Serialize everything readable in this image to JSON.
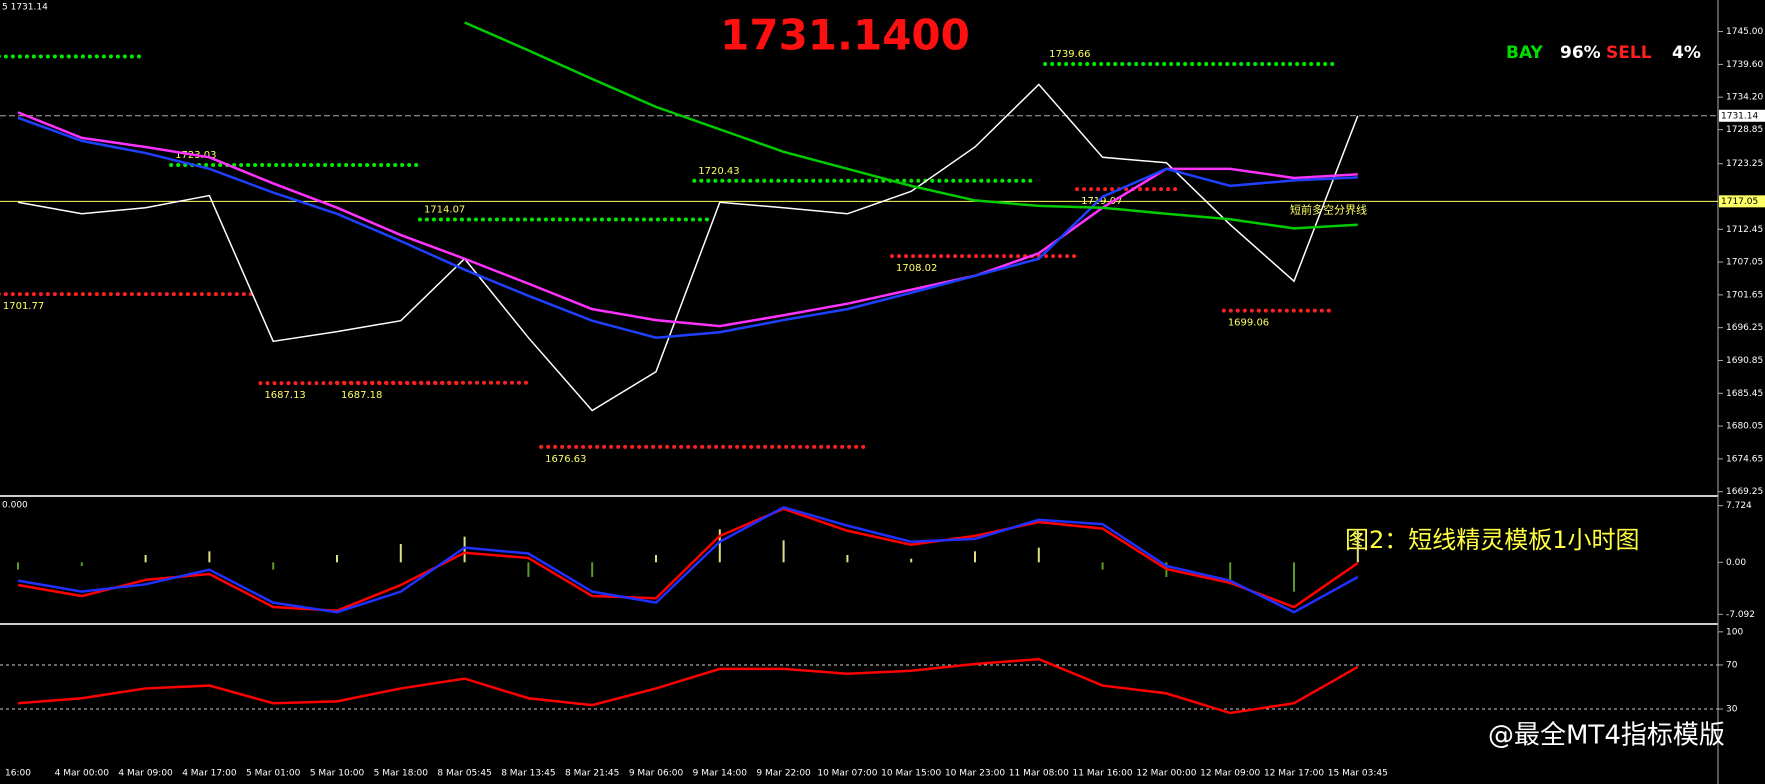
{
  "caption": "图2：短线精灵模板1小时图",
  "watermark": "@最全MT4指标模版",
  "chart_data": [
    {
      "type": "line",
      "title": "1731.1400",
      "header": "5 1731.14",
      "signals": [
        {
          "label": "BAY",
          "color": "#00e000",
          "value": 96,
          "value_label": "96%"
        },
        {
          "label": "SELL",
          "color": "#ff2020",
          "value": 4,
          "value_label": "4%"
        }
      ],
      "ylim": [
        1668.7,
        1750.2
      ],
      "yticks": [
        {
          "value": 1745,
          "label": "1745.00"
        },
        {
          "value": 1739.6,
          "label": "1739.60"
        },
        {
          "value": 1734.2,
          "label": "1734.20"
        },
        {
          "value": 1728.85,
          "label": "1728.85"
        },
        {
          "value": 1723.25,
          "label": "1723.25"
        },
        {
          "value": 1712.45,
          "label": "1712.45"
        },
        {
          "value": 1707.05,
          "label": "1707.05"
        },
        {
          "value": 1701.65,
          "label": "1701.65"
        },
        {
          "value": 1696.25,
          "label": "1696.25"
        },
        {
          "value": 1690.85,
          "label": "1690.85"
        },
        {
          "value": 1685.45,
          "label": "1685.45"
        },
        {
          "value": 1680.05,
          "label": "1680.05"
        },
        {
          "value": 1674.65,
          "label": "1674.65"
        },
        {
          "value": 1669.25,
          "label": "1669.25"
        }
      ],
      "price_lines": [
        {
          "value": 1731.14,
          "label": "1731.14",
          "color": "#aaaaaa"
        },
        {
          "value": 1717.05,
          "label": "1717.05",
          "color": "#ffff66",
          "note": "短前多空分界线"
        }
      ],
      "series": [
        {
          "color": "#ffffff",
          "values": [
            1716.9,
            1715,
            1716,
            1718,
            1694,
            1695.6,
            1697.4,
            1707.6,
            1694.6,
            1682.6,
            1689,
            1716.9,
            1716,
            1715,
            1718.7,
            1726,
            1736.3,
            1724.3,
            1723.4,
            1713.2,
            1703.9,
            1731.14
          ]
        },
        {
          "color": "#ff33ff",
          "values": [
            1731.7,
            1727.5,
            1726,
            1724.3,
            1720,
            1716,
            1711.5,
            1707.6,
            1703.5,
            1699.3,
            1697.5,
            1696.5,
            1698.3,
            1700.2,
            1702.5,
            1704.8,
            1708.5,
            1716,
            1722.4,
            1722.4,
            1720.9,
            1721.5
          ]
        },
        {
          "color": "#2040ff",
          "values": [
            1730.8,
            1727,
            1725,
            1722.4,
            1718.5,
            1715,
            1710.5,
            1705.8,
            1701.5,
            1697.4,
            1694.6,
            1695.5,
            1697.5,
            1699.3,
            1702,
            1704.8,
            1707.6,
            1717.8,
            1722.4,
            1719.6,
            1720.5,
            1721
          ]
        },
        {
          "color": "#00cc00",
          "values": [
            null,
            null,
            null,
            null,
            null,
            null,
            null,
            1746.5,
            1741.9,
            1737.2,
            1732.6,
            1728.9,
            1725.2,
            1722.4,
            1719.6,
            1717.2,
            1716.3,
            1716,
            1715,
            1714.1,
            1712.6,
            1713.2
          ]
        }
      ],
      "levels": [
        {
          "value": 1740.9,
          "color": "#00ee00",
          "from": -0.3,
          "to": 2.0
        },
        {
          "value": 1739.66,
          "label": "1739.66",
          "color": "#00ee00",
          "from": 16.1,
          "to": 20.6
        },
        {
          "value": 1723.03,
          "label": "1723.03",
          "color": "#00ee00",
          "from": 2.4,
          "to": 6.3
        },
        {
          "value": 1720.43,
          "label": "1720.43",
          "color": "#00ee00",
          "from": 10.6,
          "to": 15.9
        },
        {
          "value": 1714.07,
          "label": "1714.07",
          "color": "#00ee00",
          "from": 6.3,
          "to": 10.8
        },
        {
          "value": 1701.77,
          "label": "1701.77",
          "color": "#ff2020",
          "from": -0.3,
          "to": 3.7
        },
        {
          "value": 1687.13,
          "label": "1687.13",
          "color": "#ff2020",
          "from": 3.8,
          "to": 6.9
        },
        {
          "value": 1687.18,
          "label": "1687.18",
          "color": "#ff2020",
          "from": 5.0,
          "to": 8.0
        },
        {
          "value": 1676.63,
          "label": "1676.63",
          "color": "#ff2020",
          "from": 8.2,
          "to": 13.3
        },
        {
          "value": 1708.02,
          "label": "1708.02",
          "color": "#ff2020",
          "from": 13.7,
          "to": 16.6
        },
        {
          "value": 1719.07,
          "label": "1719.07",
          "color": "#ff2020",
          "from": 16.6,
          "to": 18.2
        },
        {
          "value": 1699.06,
          "label": "1699.06",
          "color": "#ff2020",
          "from": 18.9,
          "to": 20.6
        }
      ]
    },
    {
      "type": "line",
      "header": "0.000",
      "ylim": [
        -8.14,
        8.77
      ],
      "yticks": [
        {
          "value": 7.724,
          "label": "7.724"
        },
        {
          "value": 0,
          "label": "0.00"
        },
        {
          "value": -7.092,
          "label": "-7.092"
        }
      ],
      "histogram": {
        "color": "#e0e080",
        "negative_color": "#5a9a2a",
        "values": [
          -1,
          -0.5,
          1,
          1.5,
          -1,
          1,
          2.5,
          3.5,
          -2,
          -2,
          1,
          4.5,
          3,
          1,
          0.5,
          1.5,
          2,
          -1,
          -2,
          -3,
          -4,
          4.5
        ]
      },
      "series": [
        {
          "color": "#ff0000",
          "values": [
            -3.1,
            -4.6,
            -2.4,
            -1.6,
            -6.1,
            -6.6,
            -3.1,
            1.3,
            0.6,
            -4.6,
            -4.9,
            3.6,
            7.3,
            4.3,
            2.4,
            3.6,
            5.5,
            4.6,
            -0.9,
            -2.8,
            -6.1,
            -0.1
          ]
        },
        {
          "color": "#2030ff",
          "values": [
            -2.5,
            -4,
            -3,
            -1,
            -5.5,
            -6.8,
            -4,
            2,
            1.2,
            -4,
            -5.5,
            2.8,
            7.5,
            5,
            2.8,
            3.2,
            5.8,
            5.2,
            -0.5,
            -2.5,
            -6.8,
            -2
          ]
        }
      ]
    },
    {
      "type": "line",
      "ylim": [
        -18,
        104.4
      ],
      "yticks": [
        100,
        70,
        30
      ],
      "levels": [
        70,
        30
      ],
      "categories": [
        "16:00",
        "4 Mar 00:00",
        "4 Mar 09:00",
        "4 Mar 17:00",
        "5 Mar 01:00",
        "5 Mar 10:00",
        "5 Mar 18:00",
        "8 Mar 05:45",
        "8 Mar 13:45",
        "8 Mar 21:45",
        "9 Mar 06:00",
        "9 Mar 14:00",
        "9 Mar 22:00",
        "10 Mar 07:00",
        "10 Mar 15:00",
        "10 Mar 23:00",
        "11 Mar 08:00",
        "11 Mar 16:00",
        "12 Mar 00:00",
        "12 Mar 09:00",
        "12 Mar 17:00",
        "15 Mar 03:45"
      ],
      "series": [
        {
          "color": "#ff0000",
          "values": [
            35.3,
            39.8,
            48.7,
            51.3,
            35.3,
            37,
            48.7,
            57.6,
            39.8,
            33.6,
            48.7,
            66.4,
            66.4,
            62,
            64.7,
            70.9,
            75.3,
            51.3,
            44.2,
            26.4,
            35.3,
            68.2
          ]
        }
      ]
    }
  ]
}
